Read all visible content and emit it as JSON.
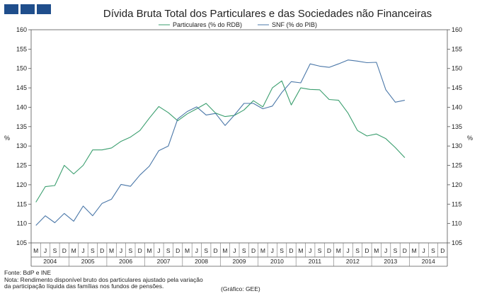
{
  "logo": {
    "icon": "brand-squares-icon",
    "color": "#1f4e8c"
  },
  "footer": {
    "source": "Fonte: BdP e INE",
    "note_line1": "Nota: Rendimento disponível bruto dos particulares ajustado pela variação",
    "note_line2": "da participação líquida das famílias nos fundos de pensões.",
    "credit": "(Gráfico: GEE)"
  },
  "chart_data": {
    "type": "line",
    "title": "Dívida Bruta Total dos Particulares e das Sociedades não Financeiras",
    "ylabel_left": "%",
    "ylabel_right": "%",
    "ylim": [
      105,
      160
    ],
    "yticks": [
      105,
      110,
      115,
      120,
      125,
      130,
      135,
      140,
      145,
      150,
      155,
      160
    ],
    "quarter_labels": [
      "M",
      "J",
      "S",
      "D",
      "M",
      "J",
      "S",
      "D",
      "M",
      "J",
      "S",
      "D",
      "M",
      "J",
      "S",
      "D",
      "M",
      "J",
      "S",
      "D",
      "M",
      "J",
      "S",
      "D",
      "M",
      "J",
      "S",
      "D",
      "M",
      "J",
      "S",
      "D",
      "M",
      "J",
      "S",
      "D",
      "M",
      "J",
      "S",
      "D",
      "M",
      "J",
      "S",
      "D"
    ],
    "years": [
      "2004",
      "2005",
      "2006",
      "2007",
      "2008",
      "2009",
      "2010",
      "2011",
      "2012",
      "2013",
      "2014"
    ],
    "series": [
      {
        "name": "Particulares (% do RDB)",
        "color": "#3a9e6e",
        "values": [
          115.5,
          119.5,
          119.8,
          125.0,
          122.8,
          125.0,
          129.0,
          129.0,
          129.5,
          131.2,
          132.3,
          134.0,
          137.2,
          140.2,
          138.6,
          136.5,
          138.3,
          139.6,
          141.0,
          138.5,
          137.6,
          137.9,
          139.3,
          141.7,
          140.1,
          145.0,
          146.8,
          140.6,
          145.0,
          144.6,
          144.5,
          142.0,
          141.8,
          138.5,
          134.0,
          132.6,
          133.1,
          131.9,
          129.6,
          127.0
        ]
      },
      {
        "name": "SNF (% do PIB)",
        "color": "#4a77a8",
        "values": [
          109.5,
          112.0,
          110.2,
          112.6,
          110.6,
          114.5,
          112.0,
          115.2,
          116.3,
          120.1,
          119.6,
          122.5,
          124.8,
          128.8,
          130.0,
          137.0,
          138.9,
          140.1,
          138.0,
          138.4,
          135.3,
          138.0,
          141.0,
          141.0,
          139.6,
          140.3,
          143.8,
          146.6,
          146.3,
          151.2,
          150.6,
          150.3,
          151.2,
          152.2,
          151.9,
          151.5,
          151.6,
          144.5,
          141.3,
          141.8
        ]
      }
    ]
  }
}
